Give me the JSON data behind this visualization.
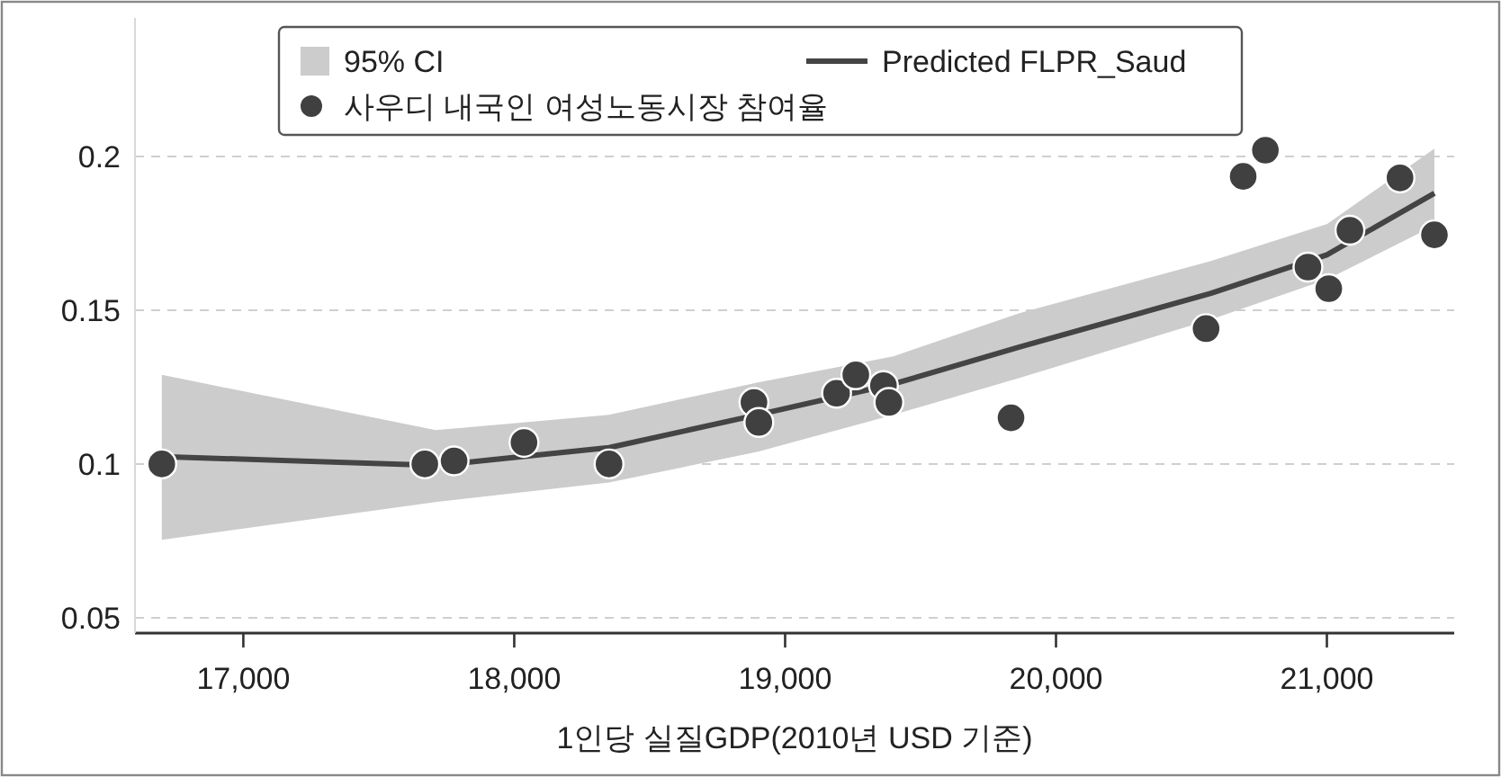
{
  "chart_data": {
    "type": "scatter",
    "xlabel": "1인당 실질GDP(2010년 USD 기준)",
    "xlim": [
      16600,
      21470
    ],
    "ylim": [
      0.045,
      0.245
    ],
    "xticks": [
      {
        "value": 17000,
        "label": "17,000"
      },
      {
        "value": 18000,
        "label": "18,000"
      },
      {
        "value": 19000,
        "label": "19,000"
      },
      {
        "value": 20000,
        "label": "20,000"
      },
      {
        "value": 21000,
        "label": "21,000"
      }
    ],
    "yticks": [
      0.05,
      0.1,
      0.15,
      0.2
    ],
    "grid": "y",
    "legend": "top",
    "annotations": [
      "95% CI"
    ],
    "series": [
      {
        "name": "Predicted FLPR_Saud",
        "type": "line",
        "color": "#444444",
        "line_style": "solid",
        "x": [
          16699,
          17710,
          18350,
          18900,
          19400,
          19865,
          20572,
          21000,
          21397
        ],
        "values": [
          0.1024,
          0.0995,
          0.1053,
          0.116,
          0.126,
          0.138,
          0.1555,
          0.168,
          0.188
        ],
        "lower": [
          0.0753,
          0.0876,
          0.094,
          0.104,
          0.116,
          0.128,
          0.147,
          0.16,
          0.1775
        ],
        "upper": [
          0.129,
          0.111,
          0.116,
          0.1265,
          0.135,
          0.149,
          0.166,
          0.178,
          0.2025
        ]
      },
      {
        "name": "사우디 내국인 여성노동시장 참여율",
        "color": "#404040",
        "marker": "circle",
        "x": [
          16699,
          17670,
          17778,
          18036,
          18350,
          18885,
          18903,
          19190,
          19261,
          19363,
          19383,
          19834,
          20554,
          20691,
          20773,
          20930,
          21007,
          21085,
          21270,
          21397
        ],
        "values": [
          0.1,
          0.1,
          0.101,
          0.107,
          0.1,
          0.12,
          0.1135,
          0.123,
          0.129,
          0.1255,
          0.12,
          0.115,
          0.144,
          0.1935,
          0.202,
          0.164,
          0.157,
          0.176,
          0.193,
          0.1745
        ]
      }
    ]
  }
}
